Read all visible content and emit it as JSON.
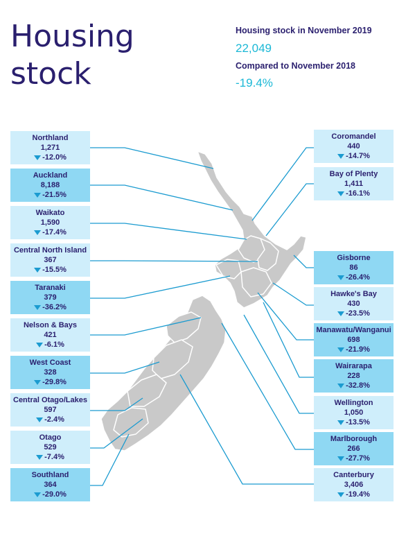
{
  "title_line1": "Housing",
  "title_line2": "stock",
  "summary": {
    "stock_label": "Housing stock in November 2019",
    "stock_value": "22,049",
    "compare_label": "Compared to November 2018",
    "compare_value": "-19.4%"
  },
  "colors": {
    "title": "#2a1f6e",
    "accent": "#1bb8d6",
    "box_light": "#cfeefb",
    "box_dark": "#8fd8f3",
    "map": "#c9c9c9",
    "leader_line": "#1b9bd0"
  },
  "icons": {
    "change": "triangle-down-icon"
  },
  "regions_left": [
    {
      "name": "Northland",
      "stock": "1,271",
      "change": "-12.0%",
      "shade": "light"
    },
    {
      "name": "Auckland",
      "stock": "8,188",
      "change": "-21.5%",
      "shade": "dark"
    },
    {
      "name": "Waikato",
      "stock": "1,590",
      "change": "-17.4%",
      "shade": "light"
    },
    {
      "name": "Central North Island",
      "stock": "367",
      "change": "-15.5%",
      "shade": "light"
    },
    {
      "name": "Taranaki",
      "stock": "379",
      "change": "-36.2%",
      "shade": "dark"
    },
    {
      "name": "Nelson & Bays",
      "stock": "421",
      "change": "-6.1%",
      "shade": "light"
    },
    {
      "name": "West Coast",
      "stock": "328",
      "change": "-29.8%",
      "shade": "dark"
    },
    {
      "name": "Central Otago/Lakes",
      "stock": "597",
      "change": "-2.4%",
      "shade": "light"
    },
    {
      "name": "Otago",
      "stock": "529",
      "change": "-7.4%",
      "shade": "light"
    },
    {
      "name": "Southland",
      "stock": "364",
      "change": "-29.0%",
      "shade": "dark"
    }
  ],
  "regions_right": [
    {
      "name": "Coromandel",
      "stock": "440",
      "change": "-14.7%",
      "shade": "light"
    },
    {
      "name": "Bay of Plenty",
      "stock": "1,411",
      "change": "-16.1%",
      "shade": "light"
    },
    {
      "name": "Gisborne",
      "stock": "86",
      "change": "-26.4%",
      "shade": "dark"
    },
    {
      "name": "Hawke's Bay",
      "stock": "430",
      "change": "-23.5%",
      "shade": "light"
    },
    {
      "name": "Manawatu/Wanganui",
      "stock": "698",
      "change": "-21.9%",
      "shade": "dark"
    },
    {
      "name": "Wairarapa",
      "stock": "228",
      "change": "-32.8%",
      "shade": "dark"
    },
    {
      "name": "Wellington",
      "stock": "1,050",
      "change": "-13.5%",
      "shade": "light"
    },
    {
      "name": "Marlborough",
      "stock": "266",
      "change": "-27.7%",
      "shade": "dark"
    },
    {
      "name": "Canterbury",
      "stock": "3,406",
      "change": "-19.4%",
      "shade": "light"
    }
  ]
}
